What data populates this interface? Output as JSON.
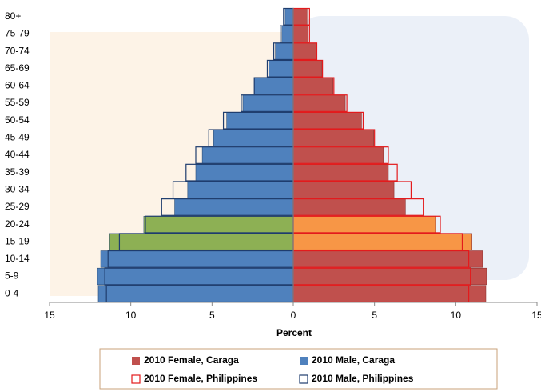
{
  "chart_data": {
    "type": "pyramid",
    "x_label": "Percent",
    "categories": [
      "0-4",
      "5-9",
      "10-14",
      "15-19",
      "20-24",
      "25-29",
      "30-34",
      "35-39",
      "40-44",
      "45-49",
      "50-54",
      "55-59",
      "60-64",
      "65-69",
      "70-74",
      "75-79",
      "80+"
    ],
    "xlim": [
      -15,
      15
    ],
    "xticks": [
      {
        "value": -15,
        "label": "15"
      },
      {
        "value": -10,
        "label": "10"
      },
      {
        "value": -5,
        "label": "5"
      },
      0,
      5,
      10,
      15
    ],
    "series": [
      {
        "name": "2010 Female, Caraga",
        "style": "filled",
        "color": "#c0504d",
        "edge": "#8b2f2d",
        "colors": [
          "#c0504d",
          "#c0504d",
          "#c0504d",
          "#f79646",
          "#f79646",
          "#c0504d",
          "#c0504d",
          "#c0504d",
          "#c0504d",
          "#c0504d",
          "#c0504d",
          "#c0504d",
          "#c0504d",
          "#c0504d",
          "#c0504d",
          "#c0504d",
          "#c0504d"
        ],
        "values": [
          11.85,
          11.9,
          11.65,
          11.0,
          8.75,
          6.9,
          6.2,
          5.85,
          5.55,
          4.95,
          4.2,
          3.2,
          2.45,
          1.75,
          1.4,
          0.9,
          0.85
        ]
      },
      {
        "name": "2010 Male, Caraga",
        "style": "filled",
        "color": "#4f81bd",
        "edge": "#2c4d75",
        "colors": [
          "#4f81bd",
          "#4f81bd",
          "#4f81bd",
          "#8db054",
          "#8db054",
          "#4f81bd",
          "#4f81bd",
          "#4f81bd",
          "#4f81bd",
          "#4f81bd",
          "#4f81bd",
          "#4f81bd",
          "#4f81bd",
          "#4f81bd",
          "#4f81bd",
          "#4f81bd",
          "#4f81bd"
        ],
        "values": [
          -12.0,
          -12.05,
          -11.85,
          -11.3,
          -9.2,
          -7.3,
          -6.5,
          -6.0,
          -5.6,
          -4.9,
          -4.1,
          -3.1,
          -2.4,
          -1.5,
          -1.1,
          -0.7,
          -0.5
        ]
      },
      {
        "name": "2010 Female, Philippines",
        "style": "outline",
        "color": "#e31a1c",
        "values": [
          10.8,
          10.9,
          10.8,
          10.4,
          9.05,
          8.0,
          7.25,
          6.4,
          5.85,
          5.0,
          4.3,
          3.3,
          2.5,
          1.8,
          1.45,
          1.0,
          1.0
        ]
      },
      {
        "name": "2010 Male, Philippines",
        "style": "outline",
        "color": "#1f3d6e",
        "values": [
          -11.5,
          -11.6,
          -11.4,
          -10.7,
          -9.1,
          -8.1,
          -7.4,
          -6.6,
          -6.0,
          -5.2,
          -4.3,
          -3.2,
          -2.4,
          -1.6,
          -1.2,
          -0.8,
          -0.6
        ]
      }
    ]
  }
}
